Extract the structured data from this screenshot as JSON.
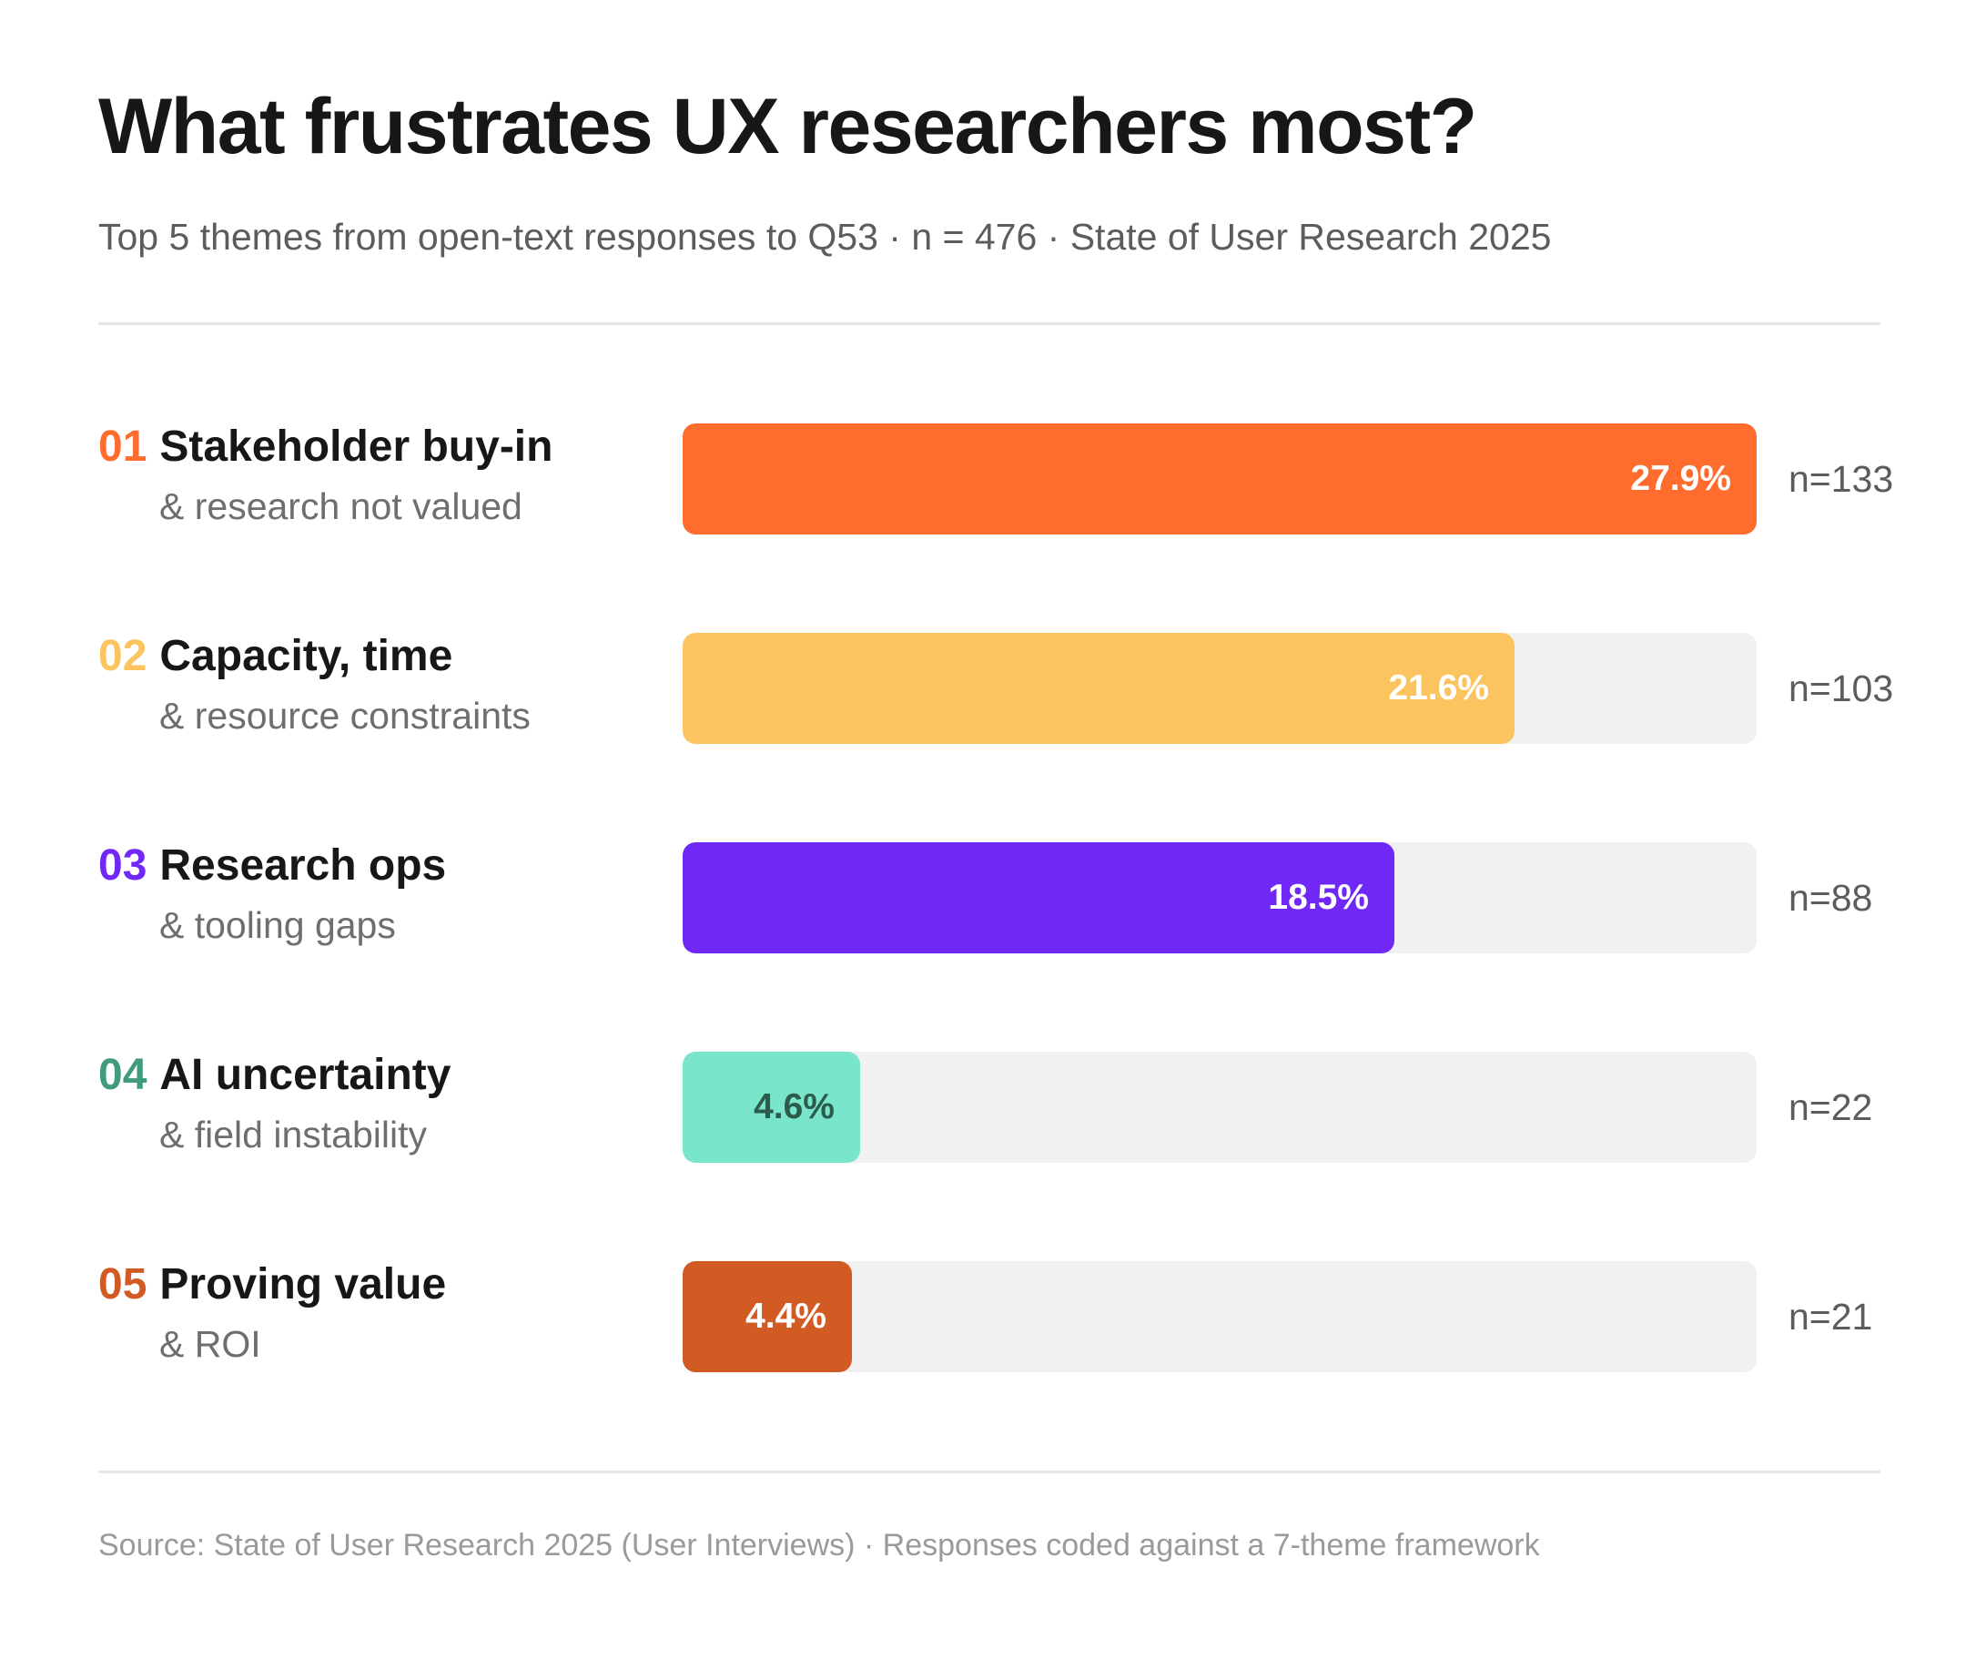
{
  "header": {
    "title": "What frustrates UX researchers most?",
    "subtitle": "Top 5 themes from open-text responses to Q53 · n = 476 · State of User Research 2025"
  },
  "footer": {
    "source": "Source: State of User Research 2025 (User Interviews) · Responses coded against a 7-theme framework"
  },
  "chart_data": {
    "type": "bar",
    "orientation": "horizontal",
    "title": "What frustrates UX researchers most?",
    "xlim": [
      0,
      27.9
    ],
    "grid": false,
    "categories": [
      "Stakeholder buy-in",
      "Capacity, time",
      "Research ops",
      "AI uncertainty",
      "Proving value"
    ],
    "values": [
      27.9,
      21.6,
      18.5,
      4.6,
      4.4
    ],
    "rows": [
      {
        "rank": "01",
        "label": "Stakeholder buy-in",
        "sublabel": "& research not valued",
        "value": 27.9,
        "value_label": "27.9%",
        "count_label": "n=133",
        "color": "#ff6d2e",
        "text_color": "#ffffff"
      },
      {
        "rank": "02",
        "label": "Capacity, time",
        "sublabel": "& resource constraints",
        "value": 21.6,
        "value_label": "21.6%",
        "count_label": "n=103",
        "color": "#fcc45f",
        "text_color": "#ffffff"
      },
      {
        "rank": "03",
        "label": "Research ops",
        "sublabel": "& tooling gaps",
        "value": 18.5,
        "value_label": "18.5%",
        "count_label": "n=88",
        "color": "#7028f6",
        "text_color": "#ffffff"
      },
      {
        "rank": "04",
        "label": "AI uncertainty",
        "sublabel": "& field instability",
        "value": 4.6,
        "value_label": "4.6%",
        "count_label": "n=22",
        "color": "#79e6cc",
        "rank_color": "#3f9a7e",
        "text_color": "#2c5a4c"
      },
      {
        "rank": "05",
        "label": "Proving value",
        "sublabel": "& ROI",
        "value": 4.4,
        "value_label": "4.4%",
        "count_label": "n=21",
        "color": "#d25b24",
        "text_color": "#ffffff"
      }
    ]
  }
}
